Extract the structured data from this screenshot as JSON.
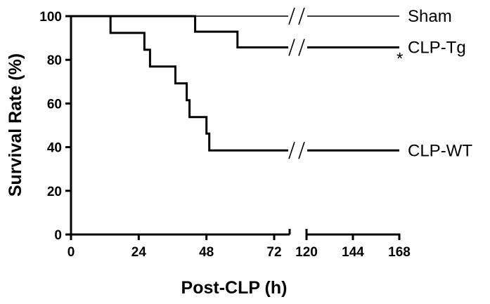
{
  "chart_data": {
    "type": "line",
    "step": true,
    "xlabel": "Post-CLP (h)",
    "ylabel": "Survival Rate (%)",
    "ylim": [
      0,
      100
    ],
    "yticks": [
      0,
      20,
      40,
      60,
      80,
      100
    ],
    "x_segments": [
      {
        "range": [
          0,
          78
        ],
        "ticks": [
          0,
          24,
          48,
          72
        ]
      },
      {
        "range": [
          118,
          168
        ],
        "ticks": [
          120,
          144,
          168
        ]
      }
    ],
    "axis_break": true,
    "series": [
      {
        "name": "Sham",
        "points": [
          [
            0,
            100
          ],
          [
            168,
            100
          ]
        ],
        "line_weight": "thin"
      },
      {
        "name": "CLP-Tg",
        "points": [
          [
            0,
            100
          ],
          [
            44,
            100
          ],
          [
            44,
            92.9
          ],
          [
            59,
            92.9
          ],
          [
            59,
            85.7
          ],
          [
            168,
            85.7
          ]
        ],
        "line_weight": "thick"
      },
      {
        "name": "CLP-WT",
        "points": [
          [
            0,
            100
          ],
          [
            14,
            100
          ],
          [
            14,
            92.3
          ],
          [
            26,
            92.3
          ],
          [
            26,
            84.6
          ],
          [
            28,
            84.6
          ],
          [
            28,
            76.9
          ],
          [
            37,
            76.9
          ],
          [
            37,
            69.2
          ],
          [
            41,
            69.2
          ],
          [
            41,
            61.5
          ],
          [
            42,
            61.5
          ],
          [
            42,
            53.8
          ],
          [
            48,
            53.8
          ],
          [
            48,
            46.2
          ],
          [
            49,
            46.2
          ],
          [
            49,
            38.5
          ],
          [
            168,
            38.5
          ]
        ],
        "line_weight": "thick"
      }
    ],
    "annotations": [
      {
        "text": "*",
        "series": "CLP-Tg"
      }
    ]
  }
}
